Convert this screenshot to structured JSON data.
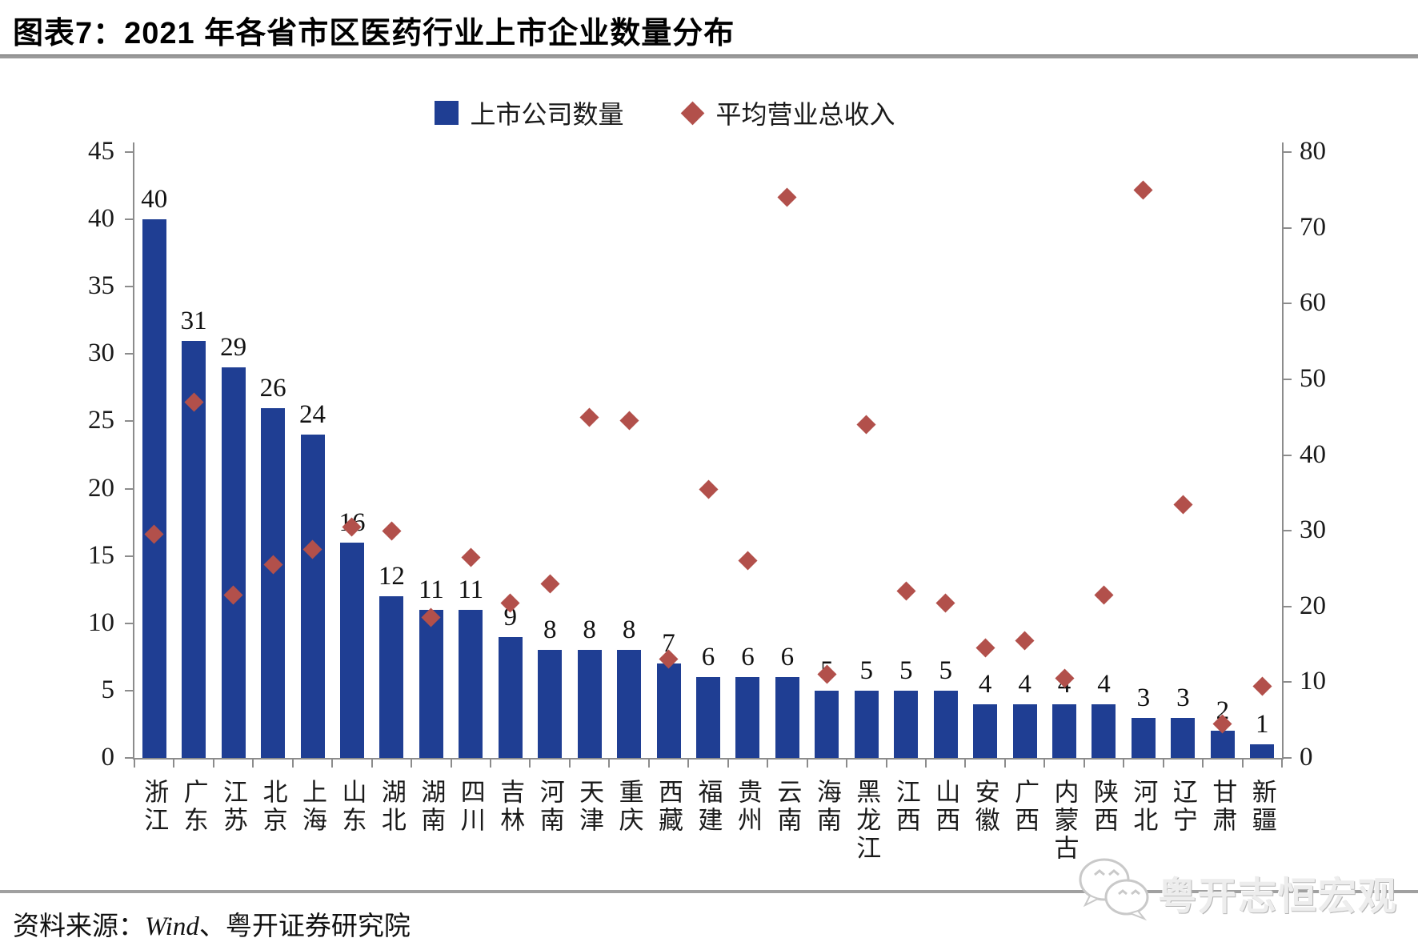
{
  "title": "图表7：2021 年各省市区医药行业上市企业数量分布",
  "legend": [
    {
      "label": "上市公司数量",
      "marker": "bar-square",
      "color": "#1F3E93"
    },
    {
      "label": "平均营业总收入",
      "marker": "diamond",
      "color": "#B2504B"
    }
  ],
  "source": {
    "prefix": "资料来源：",
    "latin": "Wind",
    "suffix": "、粤开证券研究院"
  },
  "watermark": {
    "text": "粤开志恒宏观",
    "logo": "wechat-bubbles-icon"
  },
  "colors": {
    "bar": "#1F3E93",
    "diamond": "#B2504B",
    "axis": "#8c8c8c",
    "text": "#1a1a1a",
    "separator": "#a0a0a0"
  },
  "chart_data": {
    "type": "bar",
    "subtype": "bar-with-scatter-overlay",
    "categories": [
      "浙江",
      "广东",
      "江苏",
      "北京",
      "上海",
      "山东",
      "湖北",
      "湖南",
      "四川",
      "吉林",
      "河南",
      "天津",
      "重庆",
      "西藏",
      "福建",
      "贵州",
      "云南",
      "海南",
      "黑龙江",
      "江西",
      "山西",
      "安徽",
      "广西",
      "内蒙古",
      "陕西",
      "河北",
      "辽宁",
      "甘肃",
      "新疆"
    ],
    "series": [
      {
        "name": "上市公司数量",
        "type": "bar",
        "axis": "left",
        "values": [
          40,
          31,
          29,
          26,
          24,
          16,
          12,
          11,
          11,
          9,
          8,
          8,
          8,
          7,
          6,
          6,
          6,
          5,
          5,
          5,
          5,
          4,
          4,
          4,
          4,
          3,
          3,
          2,
          1
        ]
      },
      {
        "name": "平均营业总收入",
        "type": "scatter",
        "axis": "right",
        "values": [
          29.5,
          47,
          21.5,
          25.5,
          27.5,
          30.5,
          30,
          18.5,
          26.5,
          20.5,
          23,
          45,
          44.5,
          13,
          35.5,
          26,
          74,
          11,
          44,
          22,
          20.5,
          14.5,
          15.5,
          10.5,
          21.5,
          75,
          33.5,
          4.5,
          9.5
        ]
      }
    ],
    "left_axis": {
      "min": 0,
      "max": 45,
      "step": 5
    },
    "right_axis": {
      "min": 0,
      "max": 80,
      "step": 10
    },
    "bar_value_labels": true,
    "grid": false,
    "legend_position": "top-center"
  }
}
